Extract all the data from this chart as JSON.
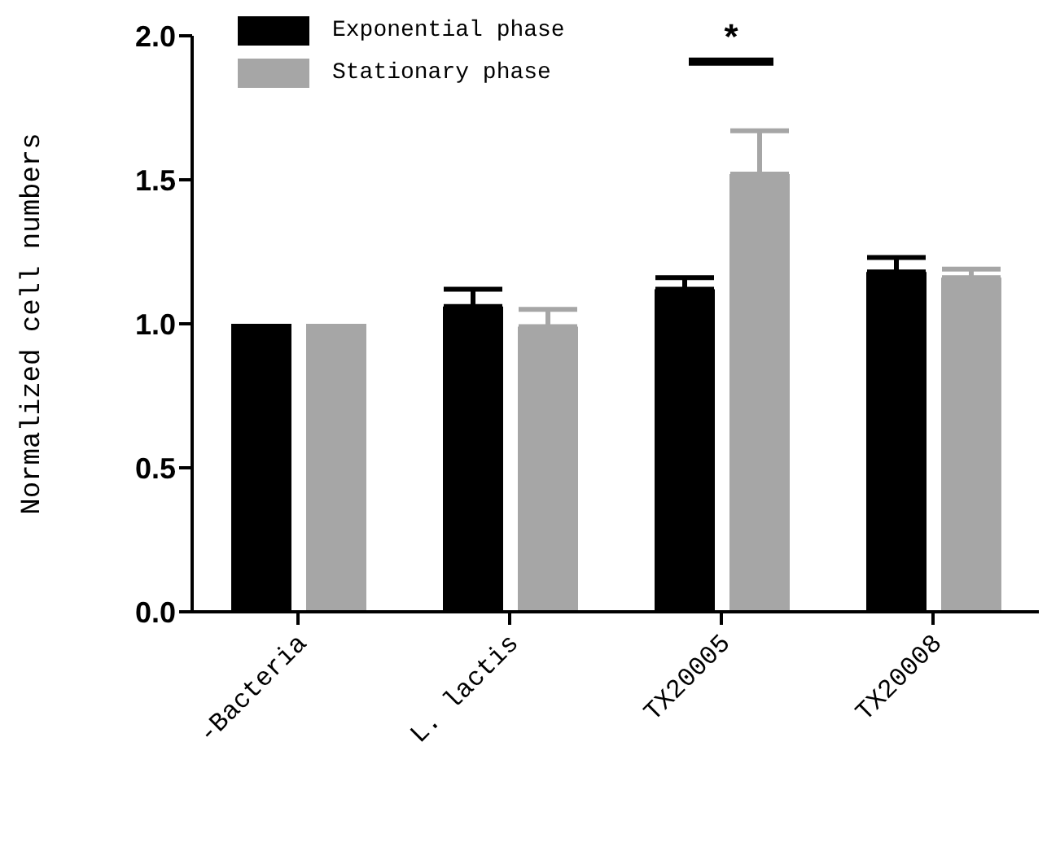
{
  "chart_data": {
    "type": "bar",
    "ylabel": "Normalized cell numbers",
    "categories": [
      "-Bacteria",
      "L. lactis",
      "TX20005",
      "TX20008"
    ],
    "series": [
      {
        "name": "Exponential phase",
        "color": "#000000",
        "values": [
          1.0,
          1.06,
          1.12,
          1.18
        ],
        "errors": [
          null,
          [
            1.06,
            1.12
          ],
          [
            1.12,
            1.16
          ],
          [
            1.18,
            1.23
          ]
        ]
      },
      {
        "name": "Stationary phase",
        "color": "#a6a6a6",
        "values": [
          1.0,
          0.99,
          1.52,
          1.16
        ],
        "errors": [
          null,
          [
            0.99,
            1.05
          ],
          [
            1.52,
            1.67
          ],
          [
            1.16,
            1.19
          ]
        ]
      }
    ],
    "ylim": [
      0,
      2
    ],
    "yticks": [
      {
        "value": 0,
        "label": "0.0"
      },
      {
        "value": 0.5,
        "label": "0.5"
      },
      {
        "value": 1,
        "label": "1.0"
      },
      {
        "value": 1.5,
        "label": "1.5"
      },
      {
        "value": 2,
        "label": "2.0"
      }
    ],
    "annotations": [
      "*"
    ],
    "grid": false,
    "legend": "top left"
  }
}
